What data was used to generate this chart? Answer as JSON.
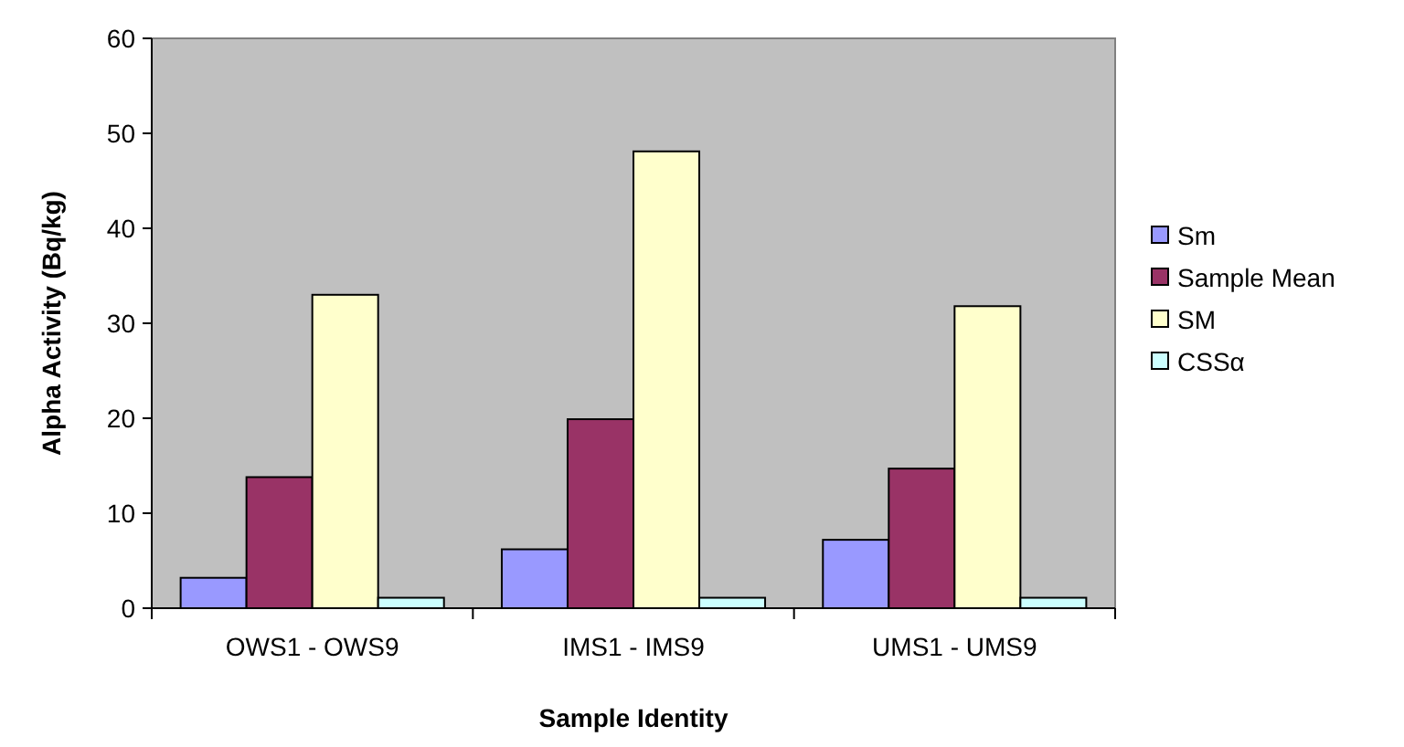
{
  "chart_data": {
    "type": "bar",
    "xlabel": "Sample Identity",
    "ylabel": "Alpha Activity (Bq/kg)",
    "categories": [
      "OWS1 - OWS9",
      "IMS1 - IMS9",
      "UMS1 - UMS9"
    ],
    "series": [
      {
        "name": "Sm",
        "color": "#9999ff",
        "values": [
          3.2,
          6.2,
          7.2
        ]
      },
      {
        "name": "Sample Mean",
        "color": "#993366",
        "values": [
          13.8,
          19.9,
          14.7
        ]
      },
      {
        "name": "SM",
        "color": "#ffffcc",
        "values": [
          33.0,
          48.1,
          31.8
        ]
      },
      {
        "name": "CSSα",
        "color": "#ccffff",
        "values": [
          1.1,
          1.1,
          1.1
        ]
      }
    ],
    "ylim": [
      0,
      60
    ],
    "yticks": [
      0,
      10,
      20,
      30,
      40,
      50,
      60
    ],
    "grid": false,
    "legend": "right"
  }
}
